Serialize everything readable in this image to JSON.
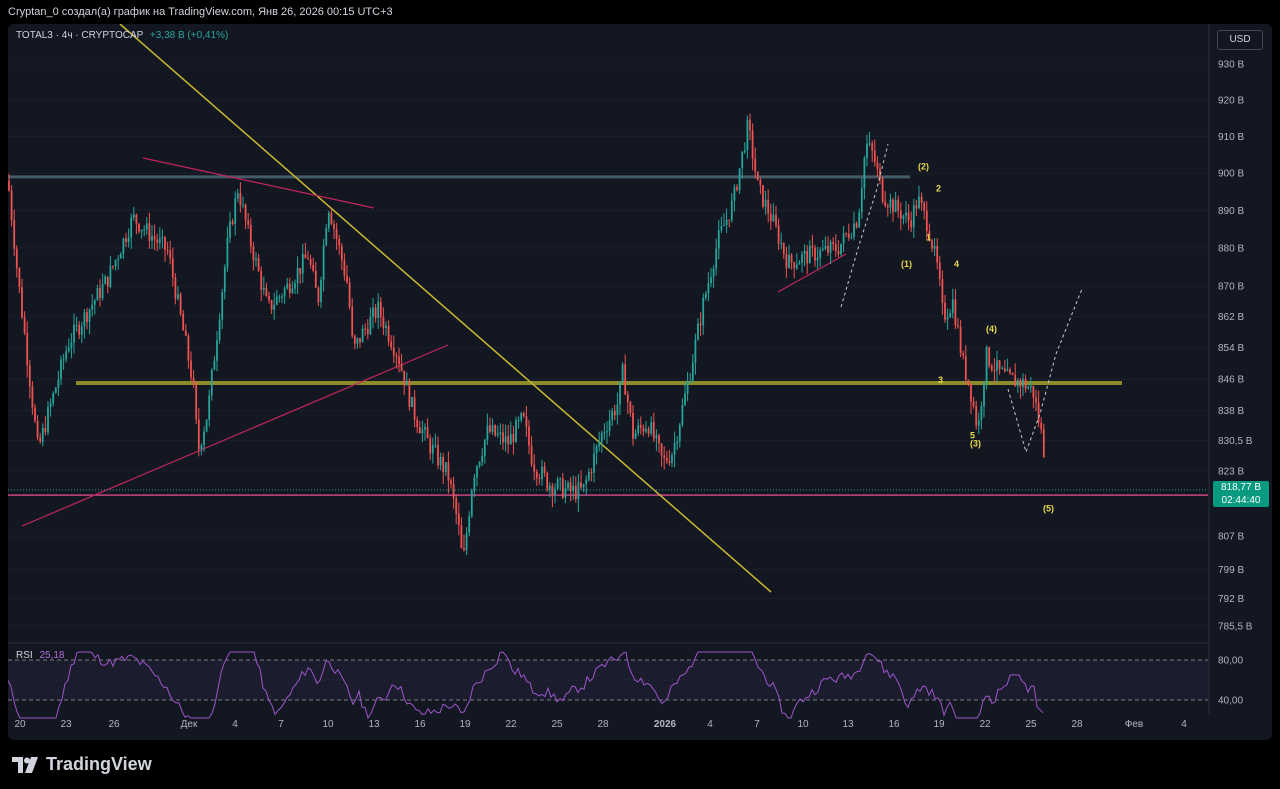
{
  "header": {
    "attribution": "Cryptan_0 создал(а) график на TradingView.com, Янв 26, 2026 00:15 UTC+3"
  },
  "legend": {
    "symbol": "TOTAL3 · 4ч · CRYPTOCAP",
    "change": "+3,38 B (+0,41%)"
  },
  "currency_button": "USD",
  "price_tag": {
    "value": "818,77 B",
    "countdown": "02:44:40"
  },
  "rsi": {
    "label": "RSI",
    "value": "25,18"
  },
  "footer": {
    "brand": "TradingView"
  },
  "colors": {
    "background": "#131722",
    "up": "#26a69a",
    "down": "#ef5350",
    "trendline": "#c9b930",
    "support": "#d94a8a",
    "resistance": "#4a6470",
    "rsi_line": "#9c57c9",
    "wave_label": "#e8d84a"
  },
  "chart_data": {
    "type": "candlestick",
    "y_scale": "log",
    "y_ticks": [
      "930 B",
      "920 B",
      "910 B",
      "900 B",
      "890 B",
      "880 B",
      "870 B",
      "862 B",
      "854 B",
      "846 B",
      "838 B",
      "830,5 B",
      "823 B",
      "807 B",
      "799 B",
      "792 B",
      "785,5 B"
    ],
    "x_ticks": [
      "20",
      "23",
      "26",
      "Дек",
      "4",
      "7",
      "10",
      "13",
      "16",
      "19",
      "22",
      "25",
      "28",
      "2026",
      "4",
      "7",
      "10",
      "13",
      "16",
      "19",
      "22",
      "25",
      "28",
      "Фев",
      "4"
    ],
    "close_path": [
      [
        0,
        898
      ],
      [
        10,
        872
      ],
      [
        30,
        828
      ],
      [
        60,
        855
      ],
      [
        100,
        872
      ],
      [
        125,
        888
      ],
      [
        160,
        879
      ],
      [
        185,
        845
      ],
      [
        190,
        828
      ],
      [
        200,
        838
      ],
      [
        220,
        882
      ],
      [
        230,
        896
      ],
      [
        240,
        884
      ],
      [
        260,
        864
      ],
      [
        280,
        870
      ],
      [
        300,
        878
      ],
      [
        310,
        866
      ],
      [
        320,
        892
      ],
      [
        340,
        870
      ],
      [
        345,
        853
      ],
      [
        355,
        858
      ],
      [
        370,
        864
      ],
      [
        390,
        852
      ],
      [
        405,
        838
      ],
      [
        420,
        830
      ],
      [
        440,
        822
      ],
      [
        450,
        810
      ],
      [
        455,
        800
      ],
      [
        465,
        822
      ],
      [
        480,
        833
      ],
      [
        500,
        830
      ],
      [
        515,
        836
      ],
      [
        525,
        825
      ],
      [
        540,
        820
      ],
      [
        560,
        818
      ],
      [
        575,
        818
      ],
      [
        595,
        833
      ],
      [
        610,
        840
      ],
      [
        615,
        848
      ],
      [
        625,
        832
      ],
      [
        640,
        835
      ],
      [
        655,
        825
      ],
      [
        665,
        828
      ],
      [
        680,
        845
      ],
      [
        695,
        865
      ],
      [
        710,
        882
      ],
      [
        725,
        892
      ],
      [
        740,
        913
      ],
      [
        750,
        896
      ],
      [
        765,
        887
      ],
      [
        780,
        876
      ],
      [
        800,
        878
      ],
      [
        830,
        880
      ],
      [
        850,
        888
      ],
      [
        858,
        908
      ],
      [
        865,
        905
      ],
      [
        875,
        894
      ],
      [
        890,
        890
      ],
      [
        902,
        887
      ],
      [
        910,
        893
      ],
      [
        920,
        886
      ],
      [
        930,
        874
      ],
      [
        935,
        862
      ],
      [
        945,
        866
      ],
      [
        955,
        850
      ],
      [
        962,
        844
      ],
      [
        970,
        833
      ],
      [
        978,
        852
      ],
      [
        990,
        848
      ],
      [
        1000,
        846
      ],
      [
        1015,
        845
      ],
      [
        1025,
        843
      ],
      [
        1035,
        830
      ],
      [
        1040,
        819
      ]
    ],
    "hlines": [
      {
        "name": "resistance",
        "value": 899
      },
      {
        "name": "support-mid",
        "value": 845
      },
      {
        "name": "support-low",
        "value": 817
      }
    ],
    "wave_labels": [
      {
        "text": "(2)",
        "x": 910,
        "y": 901
      },
      {
        "text": "2",
        "x": 928,
        "y": 895
      },
      {
        "text": "1",
        "x": 918,
        "y": 882
      },
      {
        "text": "(1)",
        "x": 893,
        "y": 875
      },
      {
        "text": "4",
        "x": 946,
        "y": 875
      },
      {
        "text": "(4)",
        "x": 978,
        "y": 858
      },
      {
        "text": "3",
        "x": 930,
        "y": 845
      },
      {
        "text": "5",
        "x": 962,
        "y": 831
      },
      {
        "text": "(3)",
        "x": 962,
        "y": 829
      },
      {
        "text": "(5)",
        "x": 1035,
        "y": 813
      }
    ],
    "rsi_levels": [
      80,
      40
    ],
    "rsi_ticks": [
      "80,00",
      "40,00"
    ],
    "rsi_last": 25.18
  }
}
